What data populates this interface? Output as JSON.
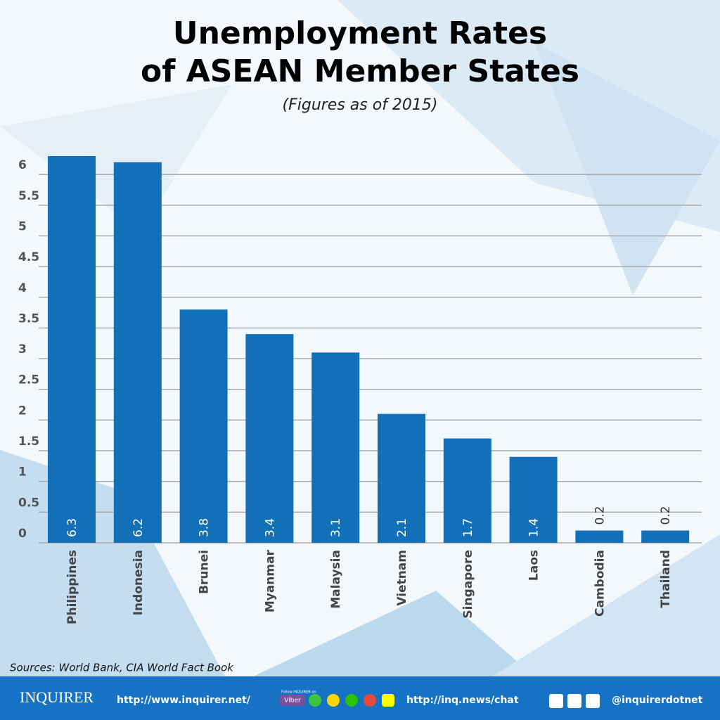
{
  "chart_data": {
    "type": "bar",
    "title": [
      "Unemployment Rates",
      "of ASEAN Member States"
    ],
    "subtitle": "(Figures as of 2015)",
    "categories": [
      "Philippines",
      "Indonesia",
      "Brunei",
      "Myanmar",
      "Malaysia",
      "Vietnam",
      "Singapore",
      "Laos",
      "Cambodia",
      "Thailand"
    ],
    "values": [
      6.3,
      6.2,
      3.8,
      3.4,
      3.1,
      2.1,
      1.7,
      1.4,
      0.2,
      0.2
    ],
    "color": "#1170b8",
    "ylim": [
      0,
      6.3
    ],
    "yticks": [
      0,
      0.5,
      1,
      1.5,
      2,
      2.5,
      3,
      3.5,
      4,
      4.5,
      5,
      5.5,
      6
    ],
    "grid": true,
    "source": "Sources: World Bank, CIA World Fact Book"
  },
  "footer": {
    "brand": "INQUIRER",
    "site": "http://www.inquirer.net/",
    "follow": "Follow INQUIRER on",
    "viber": "Viber",
    "chat": "http://inq.news/chat",
    "handle": "@inquirerdotnet"
  }
}
